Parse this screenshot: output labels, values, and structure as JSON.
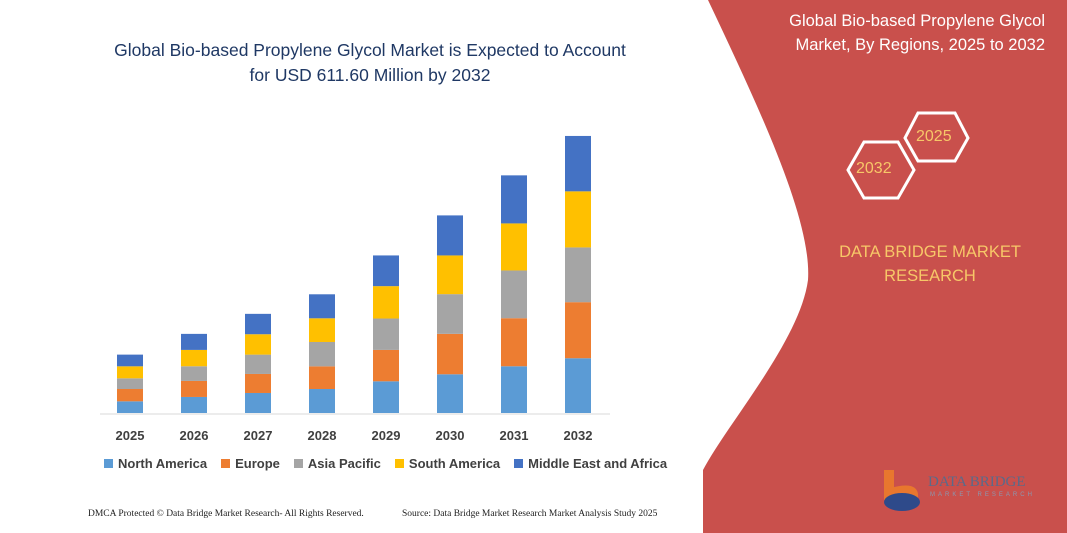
{
  "title": "Global Bio-based Propylene Glycol Market is Expected to Account for USD 611.60 Million by 2032",
  "side_panel": {
    "title": "Global Bio-based Propylene Glycol Market, By Regions, 2025 to 2032",
    "hex_start": "2025",
    "hex_end": "2032",
    "brand": "DATA BRIDGE MARKET RESEARCH",
    "logo_text": "DATA BRIDGE",
    "logo_sub": "MARKET RESEARCH",
    "color": "#c9504c"
  },
  "footer": {
    "left": "DMCA Protected © Data Bridge Market Research- All Rights Reserved.",
    "right": "Source: Data Bridge Market Research Market Analysis Study 2025"
  },
  "chart_data": {
    "type": "bar",
    "stacked": true,
    "title": "Global Bio-based Propylene Glycol Market is Expected to Account for USD 611.60 Million by 2032",
    "categories": [
      "2025",
      "2026",
      "2027",
      "2028",
      "2029",
      "2030",
      "2031",
      "2032"
    ],
    "series": [
      {
        "name": "North America",
        "color": "#5b9bd5",
        "values": [
          25.8,
          35.4,
          44.2,
          53.0,
          70.0,
          85.5,
          103.2,
          120.9
        ]
      },
      {
        "name": "Europe",
        "color": "#ed7d31",
        "values": [
          27.2,
          35.4,
          42.0,
          50.0,
          69.3,
          89.2,
          106.1,
          123.8
        ]
      },
      {
        "name": "Asia Pacific",
        "color": "#a5a5a5",
        "values": [
          23.6,
          32.4,
          42.7,
          53.8,
          69.3,
          87.7,
          105.4,
          120.9
        ]
      },
      {
        "name": "South America",
        "color": "#ffc000",
        "values": [
          26.5,
          36.1,
          45.0,
          52.3,
          71.5,
          85.5,
          103.9,
          123.8
        ]
      },
      {
        "name": "Middle East and Africa",
        "color": "#4472c4",
        "values": [
          25.8,
          35.4,
          45.0,
          53.0,
          67.8,
          88.4,
          106.1,
          122.3
        ]
      }
    ],
    "ylim": [
      0,
      611.6
    ],
    "unit": "USD Million",
    "grid": false,
    "legend": "bottom"
  }
}
